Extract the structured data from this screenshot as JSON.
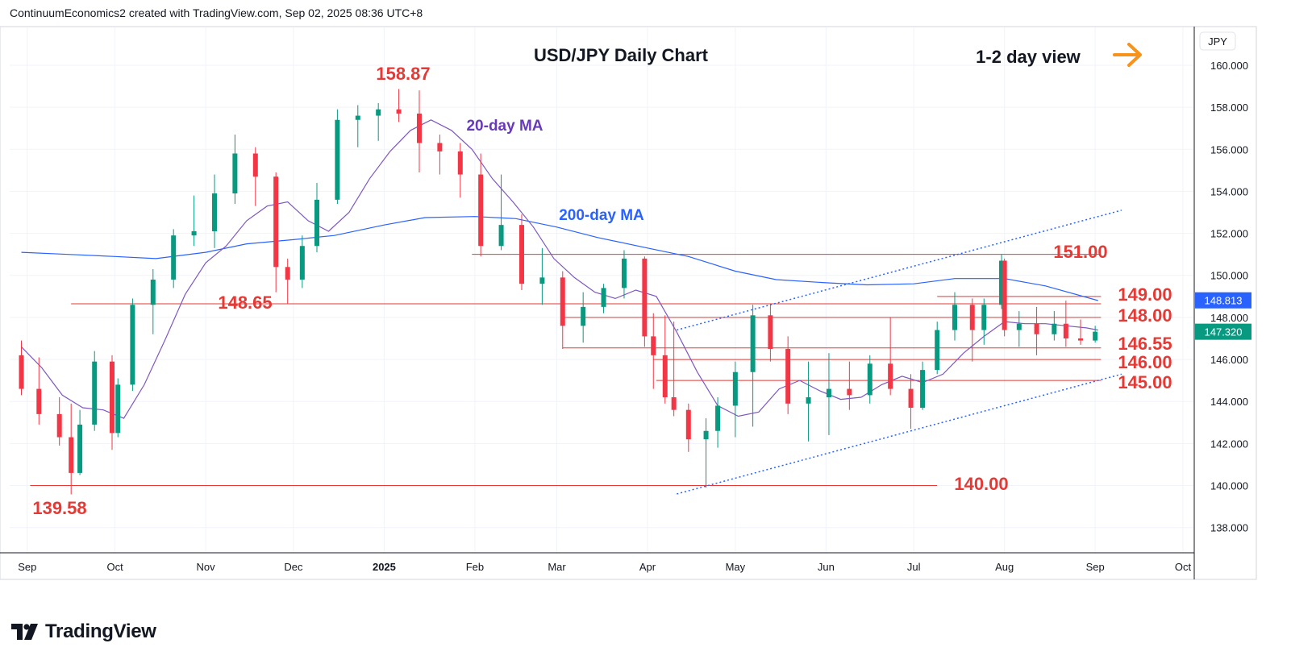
{
  "header": {
    "attribution": "ContinuumEconomics2 created with TradingView.com, Sep 02, 2025 08:36 UTC+8"
  },
  "branding": {
    "name": "TradingView",
    "icon": "tradingview-logo-icon"
  },
  "chart_data": {
    "type": "candlestick",
    "title": "USD/JPY Daily Chart",
    "view_note": "1-2 day view",
    "view_arrow": {
      "icon": "arrow-right-icon",
      "color": "#f7931a"
    },
    "currency": "JPY",
    "x_ticks": [
      "Sep",
      "Oct",
      "Nov",
      "Dec",
      "2025",
      "Feb",
      "Mar",
      "Apr",
      "May",
      "Jun",
      "Jul",
      "Aug",
      "Sep",
      "Oct"
    ],
    "y_ticks": [
      "160.000",
      "158.000",
      "156.000",
      "154.000",
      "152.000",
      "150.000",
      "148.000",
      "146.000",
      "144.000",
      "142.000",
      "140.000",
      "138.000"
    ],
    "ylim": [
      136.8,
      161.8
    ],
    "grid": true,
    "last_price": {
      "value": "147.320",
      "color": "#089981"
    },
    "ma200_value": {
      "value": "148.813",
      "color": "#2962ff"
    },
    "ma20_tag_color": "#7e57c2",
    "annotations": [
      {
        "text": "158.87",
        "kind": "high"
      },
      {
        "text": "139.58",
        "kind": "low"
      },
      {
        "text": "148.65",
        "kind": "level"
      },
      {
        "text": "151.00",
        "kind": "level"
      },
      {
        "text": "149.00",
        "kind": "level"
      },
      {
        "text": "148.00",
        "kind": "level"
      },
      {
        "text": "146.55",
        "kind": "level"
      },
      {
        "text": "146.00",
        "kind": "level"
      },
      {
        "text": "145.00",
        "kind": "level"
      },
      {
        "text": "140.00",
        "kind": "level"
      }
    ],
    "indicator_labels": [
      {
        "text": "20-day MA",
        "color": "#673ab7"
      },
      {
        "text": "200-day MA",
        "color": "#2962ff"
      }
    ],
    "levels": [
      {
        "price": 151.0,
        "from": "2025-01-31",
        "to": "2025-09-03"
      },
      {
        "price": 149.0,
        "from": "2025-07-09",
        "to": "2025-09-03"
      },
      {
        "price": 148.65,
        "from": "2024-09-16",
        "to": "2025-09-03"
      },
      {
        "price": 148.0,
        "from": "2025-03-03",
        "to": "2025-09-03"
      },
      {
        "price": 146.55,
        "from": "2025-03-03",
        "to": "2025-09-03"
      },
      {
        "price": 146.0,
        "from": "2025-04-03",
        "to": "2025-09-03"
      },
      {
        "price": 145.0,
        "from": "2025-04-04",
        "to": "2025-09-03"
      },
      {
        "price": 140.0,
        "from": "2024-09-02",
        "to": "2025-07-09"
      }
    ],
    "channel": {
      "upper": [
        {
          "date": "2025-04-11",
          "price": 147.4
        },
        {
          "date": "2025-09-10",
          "price": 153.1
        }
      ],
      "lower": [
        {
          "date": "2025-04-11",
          "price": 139.6
        },
        {
          "date": "2025-09-10",
          "price": 145.3
        }
      ]
    },
    "ma20": [
      [
        "2024-08-30",
        146.6
      ],
      [
        "2024-09-06",
        145.6
      ],
      [
        "2024-09-13",
        144.3
      ],
      [
        "2024-09-20",
        143.7
      ],
      [
        "2024-09-27",
        143.6
      ],
      [
        "2024-10-04",
        143.2
      ],
      [
        "2024-10-11",
        144.8
      ],
      [
        "2024-10-18",
        146.9
      ],
      [
        "2024-10-25",
        149.1
      ],
      [
        "2024-11-01",
        150.6
      ],
      [
        "2024-11-08",
        151.4
      ],
      [
        "2024-11-15",
        152.6
      ],
      [
        "2024-11-22",
        153.3
      ],
      [
        "2024-11-29",
        153.5
      ],
      [
        "2024-12-06",
        152.6
      ],
      [
        "2024-12-13",
        152.1
      ],
      [
        "2024-12-20",
        153.0
      ],
      [
        "2024-12-27",
        154.6
      ],
      [
        "2025-01-03",
        155.9
      ],
      [
        "2025-01-10",
        156.9
      ],
      [
        "2025-01-17",
        157.4
      ],
      [
        "2025-01-24",
        156.9
      ],
      [
        "2025-01-31",
        156.0
      ],
      [
        "2025-02-07",
        154.6
      ],
      [
        "2025-02-14",
        153.5
      ],
      [
        "2025-02-21",
        152.3
      ],
      [
        "2025-02-28",
        150.8
      ],
      [
        "2025-03-07",
        149.9
      ],
      [
        "2025-03-14",
        149.2
      ],
      [
        "2025-03-21",
        148.9
      ],
      [
        "2025-03-28",
        149.3
      ],
      [
        "2025-04-04",
        149.0
      ],
      [
        "2025-04-11",
        147.3
      ],
      [
        "2025-04-18",
        145.4
      ],
      [
        "2025-04-25",
        143.8
      ],
      [
        "2025-05-02",
        143.3
      ],
      [
        "2025-05-09",
        143.5
      ],
      [
        "2025-05-16",
        144.6
      ],
      [
        "2025-05-23",
        145.0
      ],
      [
        "2025-05-30",
        144.5
      ],
      [
        "2025-06-06",
        144.1
      ],
      [
        "2025-06-13",
        144.2
      ],
      [
        "2025-06-20",
        144.8
      ],
      [
        "2025-06-27",
        145.2
      ],
      [
        "2025-07-04",
        144.9
      ],
      [
        "2025-07-11",
        145.3
      ],
      [
        "2025-07-18",
        146.3
      ],
      [
        "2025-07-25",
        147.1
      ],
      [
        "2025-08-01",
        147.8
      ],
      [
        "2025-08-08",
        147.7
      ],
      [
        "2025-08-15",
        147.7
      ],
      [
        "2025-08-22",
        147.6
      ],
      [
        "2025-08-29",
        147.5
      ],
      [
        "2025-09-02",
        147.4
      ]
    ],
    "ma200": [
      [
        "2024-08-30",
        151.1
      ],
      [
        "2024-09-15",
        151.0
      ],
      [
        "2024-10-01",
        150.9
      ],
      [
        "2024-10-15",
        150.8
      ],
      [
        "2024-11-01",
        151.1
      ],
      [
        "2024-11-15",
        151.5
      ],
      [
        "2024-12-01",
        151.7
      ],
      [
        "2024-12-15",
        151.9
      ],
      [
        "2025-01-01",
        152.4
      ],
      [
        "2025-01-15",
        152.75
      ],
      [
        "2025-02-01",
        152.8
      ],
      [
        "2025-02-15",
        152.7
      ],
      [
        "2025-03-01",
        152.3
      ],
      [
        "2025-03-15",
        151.8
      ],
      [
        "2025-04-01",
        151.3
      ],
      [
        "2025-04-15",
        150.9
      ],
      [
        "2025-05-01",
        150.2
      ],
      [
        "2025-05-15",
        149.8
      ],
      [
        "2025-06-01",
        149.65
      ],
      [
        "2025-06-15",
        149.55
      ],
      [
        "2025-07-01",
        149.6
      ],
      [
        "2025-07-15",
        149.85
      ],
      [
        "2025-08-01",
        149.85
      ],
      [
        "2025-08-15",
        149.5
      ],
      [
        "2025-09-02",
        148.8
      ]
    ],
    "candles": [
      [
        "2024-08-30",
        146.2,
        146.9,
        144.3,
        144.6
      ],
      [
        "2024-09-05",
        144.6,
        146.1,
        142.9,
        143.4
      ],
      [
        "2024-09-12",
        143.4,
        144.2,
        141.9,
        142.3
      ],
      [
        "2024-09-16",
        142.3,
        143.9,
        139.58,
        140.6
      ],
      [
        "2024-09-19",
        140.6,
        143.6,
        140.5,
        142.9
      ],
      [
        "2024-09-24",
        142.9,
        146.4,
        142.6,
        145.9
      ],
      [
        "2024-09-30",
        145.9,
        146.2,
        141.7,
        142.5
      ],
      [
        "2024-10-02",
        142.5,
        145.1,
        142.3,
        144.8
      ],
      [
        "2024-10-07",
        144.8,
        148.9,
        144.5,
        148.6
      ],
      [
        "2024-10-14",
        148.6,
        150.3,
        147.2,
        149.8
      ],
      [
        "2024-10-21",
        149.8,
        152.2,
        149.4,
        151.9
      ],
      [
        "2024-10-28",
        151.9,
        153.8,
        151.4,
        152.1
      ],
      [
        "2024-11-04",
        152.1,
        154.8,
        151.3,
        153.9
      ],
      [
        "2024-11-11",
        153.9,
        156.7,
        153.4,
        155.8
      ],
      [
        "2024-11-18",
        155.8,
        156.1,
        153.3,
        154.7
      ],
      [
        "2024-11-25",
        154.7,
        154.9,
        149.2,
        150.4
      ],
      [
        "2024-11-29",
        150.4,
        150.8,
        148.65,
        149.8
      ],
      [
        "2024-12-04",
        149.8,
        151.9,
        149.4,
        151.4
      ],
      [
        "2024-12-09",
        151.4,
        154.4,
        151.1,
        153.6
      ],
      [
        "2024-12-16",
        153.6,
        157.9,
        153.4,
        157.4
      ],
      [
        "2024-12-23",
        157.4,
        158.1,
        156.1,
        157.6
      ],
      [
        "2024-12-30",
        157.6,
        158.2,
        156.4,
        157.9
      ],
      [
        "2025-01-06",
        157.9,
        158.87,
        157.3,
        157.7
      ],
      [
        "2025-01-13",
        157.7,
        158.8,
        154.9,
        156.3
      ],
      [
        "2025-01-20",
        156.3,
        156.7,
        154.8,
        155.9
      ],
      [
        "2025-01-27",
        155.9,
        156.3,
        153.7,
        154.8
      ],
      [
        "2025-02-03",
        154.8,
        155.8,
        150.9,
        151.4
      ],
      [
        "2025-02-10",
        151.4,
        154.8,
        151.2,
        152.4
      ],
      [
        "2025-02-17",
        152.4,
        152.9,
        149.3,
        149.6
      ],
      [
        "2025-02-24",
        149.6,
        151.3,
        148.6,
        149.9
      ],
      [
        "2025-03-03",
        149.9,
        150.2,
        146.5,
        147.6
      ],
      [
        "2025-03-10",
        147.6,
        149.2,
        146.8,
        148.5
      ],
      [
        "2025-03-17",
        148.5,
        149.6,
        148.2,
        149.4
      ],
      [
        "2025-03-24",
        149.4,
        151.2,
        148.9,
        150.8
      ],
      [
        "2025-03-31",
        150.8,
        150.9,
        146.6,
        147.1
      ],
      [
        "2025-04-03",
        147.1,
        148.2,
        144.6,
        146.2
      ],
      [
        "2025-04-07",
        146.2,
        148.1,
        143.9,
        144.2
      ],
      [
        "2025-04-10",
        144.2,
        147.8,
        143.3,
        143.6
      ],
      [
        "2025-04-15",
        143.6,
        143.9,
        141.6,
        142.2
      ],
      [
        "2025-04-21",
        142.2,
        143.2,
        139.9,
        142.6
      ],
      [
        "2025-04-25",
        142.6,
        144.2,
        141.8,
        143.8
      ],
      [
        "2025-05-01",
        143.8,
        145.9,
        142.3,
        145.4
      ],
      [
        "2025-05-07",
        145.4,
        148.6,
        142.8,
        148.1
      ],
      [
        "2025-05-13",
        148.1,
        148.6,
        145.9,
        146.5
      ],
      [
        "2025-05-19",
        146.5,
        147.1,
        143.4,
        143.9
      ],
      [
        "2025-05-26",
        143.9,
        145.9,
        142.1,
        144.2
      ],
      [
        "2025-06-02",
        144.2,
        146.3,
        142.4,
        144.6
      ],
      [
        "2025-06-09",
        144.6,
        145.9,
        143.6,
        144.3
      ],
      [
        "2025-06-16",
        144.3,
        146.2,
        143.9,
        145.8
      ],
      [
        "2025-06-23",
        145.8,
        148.0,
        144.3,
        144.6
      ],
      [
        "2025-06-30",
        144.6,
        145.3,
        142.7,
        143.7
      ],
      [
        "2025-07-04",
        143.7,
        145.9,
        143.6,
        145.5
      ],
      [
        "2025-07-09",
        145.5,
        147.8,
        145.3,
        147.4
      ],
      [
        "2025-07-15",
        147.4,
        149.2,
        146.9,
        148.6
      ],
      [
        "2025-07-21",
        148.6,
        148.9,
        145.9,
        147.4
      ],
      [
        "2025-07-25",
        147.4,
        148.9,
        146.7,
        148.6
      ],
      [
        "2025-07-31",
        148.6,
        151.0,
        148.4,
        150.7
      ],
      [
        "2025-08-01",
        150.7,
        150.8,
        147.1,
        147.4
      ],
      [
        "2025-08-06",
        147.4,
        148.3,
        146.6,
        147.7
      ],
      [
        "2025-08-12",
        147.7,
        148.5,
        146.2,
        147.2
      ],
      [
        "2025-08-18",
        147.2,
        148.3,
        146.9,
        147.7
      ],
      [
        "2025-08-22",
        147.7,
        148.8,
        146.6,
        147.0
      ],
      [
        "2025-08-27",
        147.0,
        147.9,
        146.7,
        146.9
      ],
      [
        "2025-09-01",
        146.9,
        147.6,
        146.8,
        147.32
      ]
    ]
  }
}
